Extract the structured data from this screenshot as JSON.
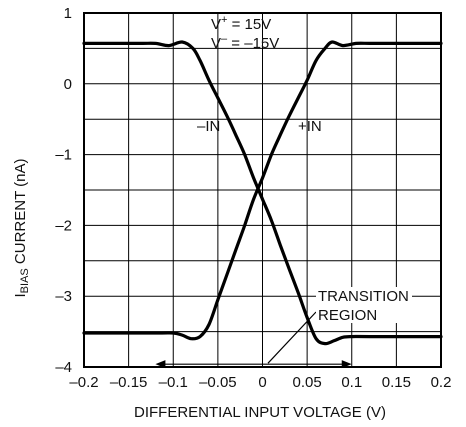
{
  "chart_data": {
    "type": "line",
    "title": "",
    "xlabel": "DIFFERENTIAL INPUT VOLTAGE (V)",
    "ylabel_main": "I",
    "ylabel_sub": "BIAS",
    "ylabel_rest": " CURRENT (nA)",
    "xlim": [
      -0.2,
      0.2
    ],
    "ylim": [
      -4,
      1
    ],
    "x_ticks": [
      -0.2,
      -0.15,
      -0.1,
      -0.05,
      0,
      0.05,
      0.1,
      0.15,
      0.2
    ],
    "x_tick_labels": [
      "–0.2",
      "–0.15",
      "–0.1",
      "–0.05",
      "0",
      "0.05",
      "0.1",
      "0.15",
      "0.2"
    ],
    "y_ticks": [
      1,
      0,
      -1,
      -2,
      -3,
      -4
    ],
    "y_tick_labels": [
      "1",
      "0",
      "–1",
      "–2",
      "–3",
      "–4"
    ],
    "grid": true,
    "conditions": {
      "vplus_main": "V",
      "vplus_sup": "+",
      "vplus_rest": " = 15V",
      "vminus_main": "V",
      "vminus_sup": "–",
      "vminus_rest": " = –15V"
    },
    "series": [
      {
        "name": "–IN",
        "x": [
          -0.2,
          -0.14,
          -0.12,
          -0.105,
          -0.09,
          -0.078,
          -0.07,
          -0.06,
          -0.05,
          -0.04,
          -0.03,
          -0.02,
          -0.01,
          0,
          0.01,
          0.02,
          0.03,
          0.04,
          0.05,
          0.06,
          0.07,
          0.08,
          0.09,
          0.1,
          0.12,
          0.2
        ],
        "y": [
          0.57,
          0.57,
          0.57,
          0.54,
          0.59,
          0.5,
          0.33,
          0.05,
          -0.2,
          -0.45,
          -0.72,
          -1.0,
          -1.33,
          -1.63,
          -1.93,
          -2.28,
          -2.62,
          -2.95,
          -3.3,
          -3.6,
          -3.67,
          -3.63,
          -3.58,
          -3.57,
          -3.57,
          -3.57
        ]
      },
      {
        "name": "+IN",
        "x": [
          -0.2,
          -0.12,
          -0.1,
          -0.09,
          -0.08,
          -0.07,
          -0.06,
          -0.05,
          -0.04,
          -0.03,
          -0.02,
          -0.01,
          0,
          0.01,
          0.02,
          0.03,
          0.04,
          0.05,
          0.06,
          0.07,
          0.078,
          0.09,
          0.105,
          0.12,
          0.14,
          0.2
        ],
        "y": [
          -3.52,
          -3.52,
          -3.52,
          -3.55,
          -3.6,
          -3.57,
          -3.4,
          -3.05,
          -2.7,
          -2.35,
          -2.0,
          -1.63,
          -1.33,
          -1.0,
          -0.72,
          -0.45,
          -0.2,
          0.05,
          0.33,
          0.5,
          0.59,
          0.54,
          0.57,
          0.57,
          0.57,
          0.57
        ]
      }
    ],
    "annotations": {
      "minus_in_label": "–IN",
      "plus_in_label": "+IN",
      "transition_line1": "TRANSITION",
      "transition_line2": "REGION",
      "transition_range": [
        -0.12,
        0.1
      ]
    }
  }
}
